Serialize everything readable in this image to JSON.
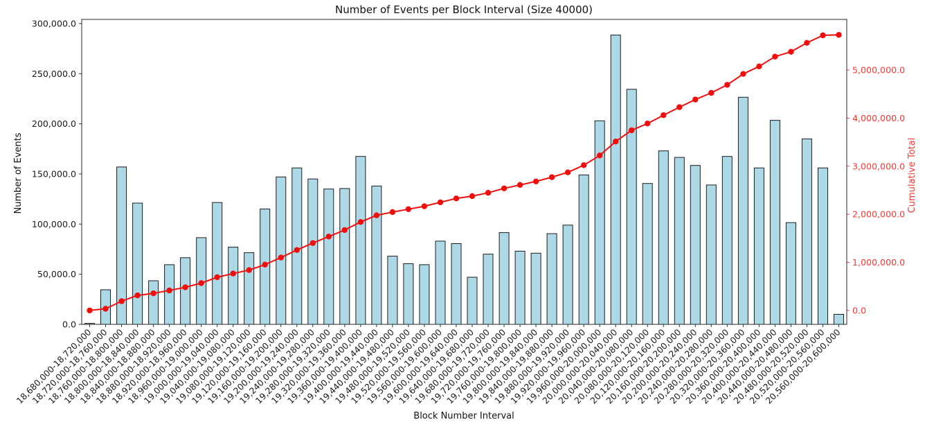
{
  "figure": {
    "background": "#ffffff"
  },
  "chart_data": {
    "type": "bar+line",
    "title": "Number of Events per Block Interval (Size 40000)",
    "xlabel": "Block Number Interval",
    "ylabel_left": "Number of Events",
    "ylabel_right": "Cumulative Total",
    "grid": false,
    "legend": "none",
    "bar_color": "#ADD8E6",
    "bar_edge_color": "#1c1c1c",
    "line_color": "#f20d0d",
    "axis_color": "#262626",
    "categories": [
      "18,680,000-18,720,000",
      "18,720,000-18,760,000",
      "18,760,000-18,800,000",
      "18,800,000-18,840,000",
      "18,840,000-18,880,000",
      "18,880,000-18,920,000",
      "18,920,000-18,960,000",
      "18,960,000-19,000,000",
      "19,000,000-19,040,000",
      "19,040,000-19,080,000",
      "19,080,000-19,120,000",
      "19,120,000-19,160,000",
      "19,160,000-19,200,000",
      "19,200,000-19,240,000",
      "19,240,000-19,280,000",
      "19,280,000-19,320,000",
      "19,320,000-19,360,000",
      "19,360,000-19,400,000",
      "19,400,000-19,440,000",
      "19,440,000-19,480,000",
      "19,480,000-19,520,000",
      "19,520,000-19,560,000",
      "19,560,000-19,600,000",
      "19,600,000-19,640,000",
      "19,640,000-19,680,000",
      "19,680,000-19,720,000",
      "19,720,000-19,760,000",
      "19,760,000-19,800,000",
      "19,800,000-19,840,000",
      "19,840,000-19,880,000",
      "19,880,000-19,920,000",
      "19,920,000-19,960,000",
      "19,960,000-20,000,000",
      "20,000,000-20,040,000",
      "20,040,000-20,080,000",
      "20,080,000-20,120,000",
      "20,120,000-20,160,000",
      "20,160,000-20,200,000",
      "20,200,000-20,240,000",
      "20,240,000-20,280,000",
      "20,280,000-20,320,000",
      "20,320,000-20,360,000",
      "20,360,000-20,400,000",
      "20,400,000-20,440,000",
      "20,440,000-20,480,000",
      "20,480,000-20,520,000",
      "20,520,000-20,560,000",
      "20,560,000-20,600,000"
    ],
    "series": [
      {
        "name": "Number of Events",
        "type": "bar",
        "axis": "left",
        "values": [
          1000,
          34500,
          157000,
          121000,
          43500,
          59500,
          66500,
          86500,
          121500,
          77000,
          71500,
          115000,
          147000,
          156000,
          145000,
          135000,
          135500,
          167500,
          138000,
          68000,
          60500,
          59500,
          83000,
          80500,
          47000,
          70000,
          91500,
          73000,
          71000,
          90500,
          99000,
          149000,
          203000,
          288500,
          234500,
          140500,
          173000,
          166500,
          158500,
          139000,
          167500,
          226500,
          156000,
          203500,
          101500,
          185000,
          156000,
          10000
        ]
      },
      {
        "name": "Cumulative Total",
        "type": "line",
        "axis": "right",
        "marker": "circle",
        "values": [
          1000,
          35500,
          192500,
          313500,
          357000,
          416500,
          483000,
          569500,
          691000,
          768000,
          839500,
          954500,
          1101500,
          1257500,
          1402500,
          1537500,
          1673000,
          1840500,
          1978500,
          2046500,
          2107000,
          2166500,
          2249500,
          2330000,
          2377000,
          2447000,
          2538500,
          2611500,
          2682500,
          2773000,
          2872000,
          3021000,
          3224000,
          3512500,
          3747000,
          3887500,
          4060500,
          4227000,
          4385500,
          4524500,
          4692000,
          4918500,
          5074500,
          5278000,
          5379500,
          5564500,
          5720500,
          5730500
        ]
      }
    ],
    "left_axis": {
      "tick_labels": [
        "0.0",
        "50,000.0",
        "100,000.0",
        "150,000.0",
        "200,000.0",
        "250,000.0",
        "300,000.0"
      ],
      "tick_values": [
        0,
        50000,
        100000,
        150000,
        200000,
        250000,
        300000
      ],
      "range": [
        0,
        304000
      ],
      "color": "#000000"
    },
    "right_axis": {
      "tick_labels": [
        "0.0",
        "1,000,000.0",
        "2,000,000.0",
        "3,000,000.0",
        "4,000,000.0",
        "5,000,000.0"
      ],
      "tick_values": [
        0,
        1000000,
        2000000,
        3000000,
        4000000,
        5000000
      ],
      "range": [
        0,
        6050000
      ],
      "color": "#f20d0d"
    }
  }
}
